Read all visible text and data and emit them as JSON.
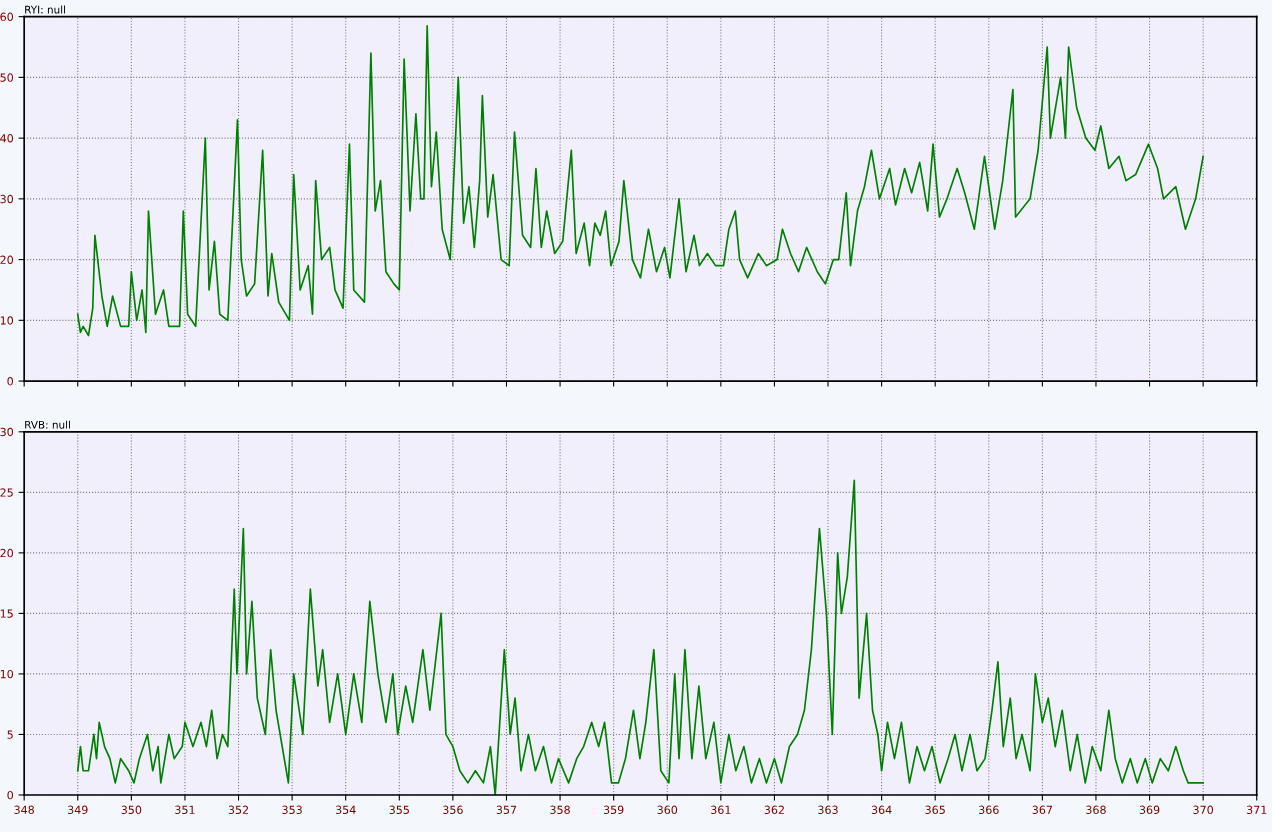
{
  "chart_data": [
    {
      "type": "line",
      "title": "RYI: null",
      "xlim": [
        348,
        371
      ],
      "xticks": [
        348,
        349,
        350,
        351,
        352,
        353,
        354,
        355,
        356,
        357,
        358,
        359,
        360,
        361,
        362,
        363,
        364,
        365,
        366,
        367,
        368,
        369,
        370,
        371
      ],
      "ylim": [
        0,
        60
      ],
      "yticks": [
        0,
        10,
        20,
        30,
        40,
        50,
        60
      ],
      "grid": true,
      "tick_labels": "y",
      "line_style": "solid",
      "series": [
        {
          "color": "#008000",
          "x": [
            349.0,
            349.05,
            349.1,
            349.2,
            349.28,
            349.32,
            349.45,
            349.55,
            349.65,
            349.8,
            349.95,
            350.0,
            350.1,
            350.2,
            350.27,
            350.32,
            350.45,
            350.6,
            350.7,
            350.9,
            350.97,
            351.05,
            351.2,
            351.38,
            351.45,
            351.55,
            351.65,
            351.8,
            351.98,
            352.05,
            352.15,
            352.3,
            352.45,
            352.55,
            352.62,
            352.75,
            352.95,
            353.03,
            353.15,
            353.3,
            353.38,
            353.44,
            353.55,
            353.7,
            353.8,
            353.95,
            354.07,
            354.15,
            354.35,
            354.47,
            354.55,
            354.65,
            354.75,
            354.9,
            355.0,
            355.09,
            355.2,
            355.31,
            355.4,
            355.46,
            355.52,
            355.6,
            355.69,
            355.8,
            355.95,
            356.1,
            356.2,
            356.3,
            356.4,
            356.5,
            356.55,
            356.65,
            356.75,
            356.9,
            357.05,
            357.15,
            357.3,
            357.45,
            357.55,
            357.65,
            357.75,
            357.9,
            358.05,
            358.21,
            358.3,
            358.45,
            358.55,
            358.65,
            358.75,
            358.85,
            358.95,
            359.1,
            359.19,
            359.35,
            359.5,
            359.65,
            359.8,
            359.95,
            360.05,
            360.22,
            360.35,
            360.5,
            360.6,
            360.75,
            360.9,
            361.05,
            361.15,
            361.27,
            361.35,
            361.5,
            361.7,
            361.85,
            362.05,
            362.15,
            362.3,
            362.45,
            362.6,
            362.8,
            362.95,
            363.1,
            363.2,
            363.34,
            363.42,
            363.55,
            363.68,
            363.81,
            363.96,
            364.15,
            364.26,
            364.43,
            364.56,
            364.71,
            364.86,
            364.96,
            365.08,
            365.22,
            365.41,
            365.55,
            365.73,
            365.92,
            366.11,
            366.26,
            366.45,
            366.5,
            366.77,
            366.92,
            367.09,
            367.15,
            367.34,
            367.43,
            367.49,
            367.64,
            367.81,
            367.98,
            368.09,
            368.24,
            368.43,
            368.56,
            368.74,
            368.98,
            369.15,
            369.26,
            369.49,
            369.67,
            369.86,
            370.0
          ],
          "values": [
            11,
            8,
            9,
            7.5,
            12,
            24,
            14,
            9,
            14,
            9,
            9,
            18,
            10,
            15,
            8,
            28,
            11,
            15,
            9,
            9,
            28,
            11,
            9,
            40,
            15,
            23,
            11,
            10,
            43,
            20,
            14,
            16,
            38,
            14,
            21,
            13,
            10,
            34,
            15,
            19,
            11,
            33,
            20,
            22,
            15,
            12,
            39,
            15,
            13,
            54,
            28,
            33,
            18,
            16,
            15,
            53,
            28,
            44,
            30,
            30,
            58.5,
            32,
            41,
            25,
            20,
            50,
            26,
            32,
            22,
            33,
            47,
            27,
            34,
            20,
            19,
            41,
            24,
            22,
            35,
            22,
            28,
            21,
            23,
            38,
            21,
            26,
            19,
            26,
            24,
            28,
            19,
            23,
            33,
            20,
            17,
            25,
            18,
            22,
            17,
            30,
            18,
            24,
            19,
            21,
            19,
            19,
            25,
            28,
            20,
            17,
            21,
            19,
            20,
            25,
            21,
            18,
            22,
            18,
            16,
            20,
            20,
            31,
            19,
            28,
            32,
            38,
            30,
            35,
            29,
            35,
            31,
            36,
            28,
            39,
            27,
            30,
            35,
            31,
            25,
            37,
            25,
            33,
            48,
            27,
            30,
            38,
            55,
            40,
            50,
            40,
            55,
            45,
            40,
            38,
            42,
            35,
            37,
            33,
            34,
            39,
            35,
            30,
            32,
            25,
            30,
            37
          ]
        }
      ]
    },
    {
      "type": "line",
      "title": "RVB: null",
      "xlim": [
        348,
        371
      ],
      "xticks": [
        348,
        349,
        350,
        351,
        352,
        353,
        354,
        355,
        356,
        357,
        358,
        359,
        360,
        361,
        362,
        363,
        364,
        365,
        366,
        367,
        368,
        369,
        370,
        371
      ],
      "ylim": [
        0,
        30
      ],
      "yticks": [
        0,
        5,
        10,
        15,
        20,
        25,
        30
      ],
      "grid": true,
      "line_style": "solid",
      "series": [
        {
          "color": "#008000",
          "x": [
            349.0,
            349.05,
            349.1,
            349.2,
            349.3,
            349.35,
            349.4,
            349.5,
            349.6,
            349.7,
            349.8,
            349.95,
            350.05,
            350.15,
            350.3,
            350.4,
            350.5,
            350.55,
            350.7,
            350.8,
            350.95,
            351.0,
            351.15,
            351.3,
            351.4,
            351.5,
            351.6,
            351.7,
            351.8,
            351.92,
            351.97,
            352.09,
            352.15,
            352.25,
            352.35,
            352.5,
            352.6,
            352.7,
            352.93,
            353.03,
            353.2,
            353.34,
            353.48,
            353.57,
            353.7,
            353.85,
            354.0,
            354.15,
            354.3,
            354.45,
            354.6,
            354.75,
            354.88,
            354.97,
            355.12,
            355.25,
            355.44,
            355.57,
            355.78,
            355.87,
            356.0,
            356.13,
            356.28,
            356.42,
            356.57,
            356.7,
            356.79,
            356.96,
            357.07,
            357.16,
            357.27,
            357.41,
            357.54,
            357.69,
            357.84,
            357.97,
            358.16,
            358.31,
            358.44,
            358.59,
            358.72,
            358.83,
            358.96,
            359.09,
            359.22,
            359.37,
            359.49,
            359.6,
            359.75,
            359.88,
            360.03,
            360.14,
            360.22,
            360.33,
            360.46,
            360.59,
            360.72,
            360.87,
            361.0,
            361.15,
            361.28,
            361.43,
            361.57,
            361.72,
            361.85,
            362.0,
            362.13,
            362.28,
            362.43,
            362.56,
            362.69,
            362.84,
            362.97,
            363.08,
            363.18,
            363.25,
            363.36,
            363.49,
            363.58,
            363.72,
            363.83,
            363.93,
            364.0,
            364.11,
            364.24,
            364.37,
            364.52,
            364.66,
            364.8,
            364.94,
            365.09,
            365.24,
            365.37,
            365.5,
            365.65,
            365.78,
            365.93,
            366.06,
            366.17,
            366.27,
            366.4,
            366.51,
            366.62,
            366.77,
            366.87,
            367.0,
            367.11,
            367.24,
            367.37,
            367.52,
            367.65,
            367.8,
            367.93,
            368.09,
            368.24,
            368.36,
            368.49,
            368.64,
            368.77,
            368.92,
            369.05,
            369.2,
            369.35,
            369.49,
            369.63,
            369.72,
            370.0
          ],
          "values": [
            2,
            4,
            2,
            2,
            5,
            3,
            6,
            4,
            3,
            1,
            3,
            2,
            1,
            3,
            5,
            2,
            4,
            1,
            5,
            3,
            4,
            6,
            4,
            6,
            4,
            7,
            3,
            5,
            4,
            17,
            10,
            22,
            10,
            16,
            8,
            5,
            12,
            7,
            1,
            10,
            5,
            17,
            9,
            12,
            6,
            10,
            5,
            10,
            6,
            16,
            10,
            6,
            10,
            5,
            9,
            6,
            12,
            7,
            15,
            5,
            4,
            2,
            1,
            2,
            1,
            4,
            0,
            12,
            5,
            8,
            2,
            5,
            2,
            4,
            1,
            3,
            1,
            3,
            4,
            6,
            4,
            6,
            1,
            1,
            3,
            7,
            3,
            6,
            12,
            2,
            1,
            10,
            3,
            12,
            3,
            9,
            3,
            6,
            1,
            5,
            2,
            4,
            1,
            3,
            1,
            3,
            1,
            4,
            5,
            7,
            12,
            22,
            15,
            5,
            20,
            15,
            18,
            26,
            8,
            15,
            7,
            5,
            2,
            6,
            3,
            6,
            1,
            4,
            2,
            4,
            1,
            3,
            5,
            2,
            5,
            2,
            3,
            7,
            11,
            4,
            8,
            3,
            5,
            2,
            10,
            6,
            8,
            4,
            7,
            2,
            5,
            1,
            4,
            2,
            7,
            3,
            1,
            3,
            1,
            3,
            1,
            3,
            2,
            4,
            2,
            1,
            1
          ]
        }
      ]
    }
  ]
}
